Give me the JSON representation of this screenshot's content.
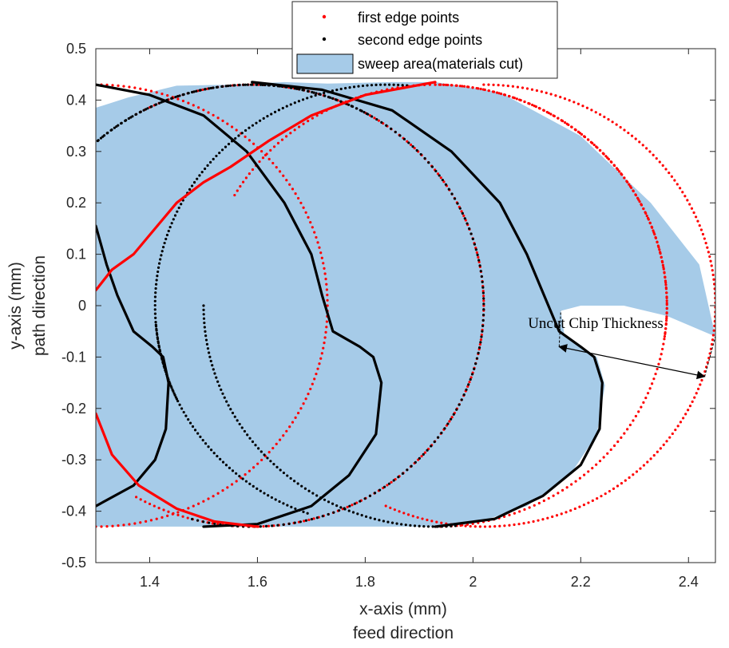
{
  "chart_data": {
    "type": "scatter",
    "xlabel": "x-axis (mm)",
    "xlabel2": "feed direction",
    "ylabel": "y-axis (mm)",
    "ylabel2": "path direction",
    "xlim": [
      1.3,
      2.45
    ],
    "ylim": [
      -0.5,
      0.5
    ],
    "x_ticks": [
      "1.4",
      "1.6",
      "1.8",
      "2",
      "2.2",
      "2.4"
    ],
    "x_tick_values": [
      1.4,
      1.6,
      1.8,
      2.0,
      2.2,
      2.4
    ],
    "y_ticks": [
      "0.5",
      "0.4",
      "0.3",
      "0.2",
      "0.1",
      "0",
      "-0.1",
      "-0.2",
      "-0.3",
      "-0.4",
      "-0.5"
    ],
    "y_tick_values": [
      0.5,
      0.4,
      0.3,
      0.2,
      0.1,
      0,
      -0.1,
      -0.2,
      -0.3,
      -0.4,
      -0.5
    ],
    "grid": false,
    "legend_position": "top-center",
    "colors": {
      "first_edge": "#ff0000",
      "second_edge": "#000000",
      "sweep_fill": "#a6cbe8",
      "sweep_edge": "#000000"
    },
    "series": [
      {
        "name": "first edge points",
        "kind": "dots",
        "color": "#ff0000"
      },
      {
        "name": "second edge points",
        "kind": "dots",
        "color": "#000000"
      },
      {
        "name": "sweep area(materials cut)",
        "kind": "area",
        "color": "#a6cbe8"
      }
    ],
    "circles": {
      "radius": 0.43,
      "centers_x": [
        1.3,
        1.59,
        1.59,
        1.84,
        1.93,
        2.02
      ],
      "notes": "edge trajectories are circles of radius 0.43 mm swept along the feed direction"
    },
    "sweep_area_outline": [
      [
        1.3,
        0.385
      ],
      [
        1.36,
        0.405
      ],
      [
        1.45,
        0.428
      ],
      [
        1.55,
        0.43
      ],
      [
        1.65,
        0.435
      ],
      [
        1.73,
        0.432
      ],
      [
        1.85,
        0.435
      ],
      [
        1.93,
        0.435
      ],
      [
        2.05,
        0.415
      ],
      [
        2.2,
        0.33
      ],
      [
        2.33,
        0.2
      ],
      [
        2.42,
        0.08
      ],
      [
        2.45,
        -0.06
      ],
      [
        2.36,
        -0.02
      ],
      [
        2.28,
        0.0
      ],
      [
        2.2,
        0.0
      ],
      [
        2.163,
        -0.01
      ],
      [
        2.17,
        -0.06
      ],
      [
        2.23,
        -0.1
      ],
      [
        2.245,
        -0.155
      ],
      [
        2.23,
        -0.25
      ],
      [
        2.18,
        -0.33
      ],
      [
        2.1,
        -0.39
      ],
      [
        2.0,
        -0.425
      ],
      [
        1.93,
        -0.43
      ],
      [
        1.7,
        -0.43
      ],
      [
        1.5,
        -0.43
      ],
      [
        1.3,
        -0.43
      ]
    ],
    "annotation": {
      "text": "Uncut Chip Thickness",
      "arrow_from": [
        2.16,
        -0.08
      ],
      "arrow_to": [
        2.43,
        -0.138
      ]
    }
  }
}
